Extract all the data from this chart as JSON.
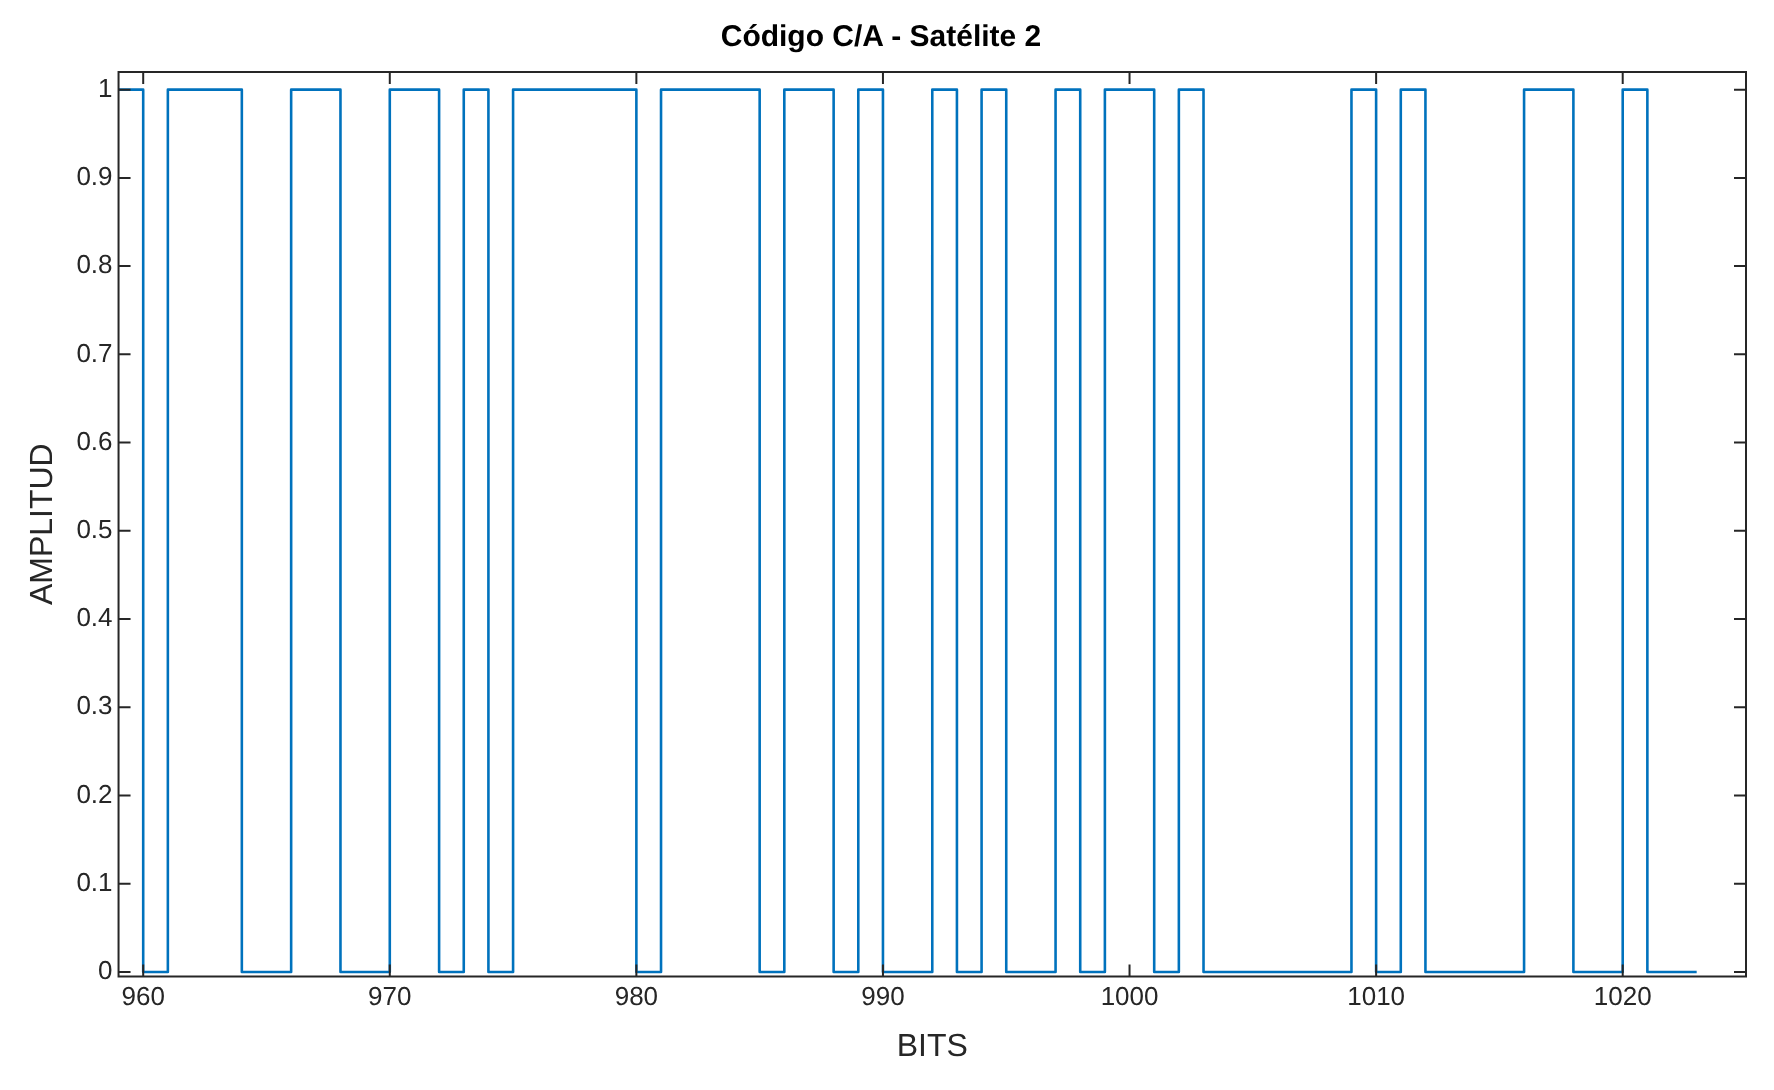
{
  "chart_data": {
    "type": "step",
    "title": "Código C/A - Satélite 2",
    "xlabel": "BITS",
    "ylabel": "AMPLITUD",
    "x": [
      959,
      960,
      961,
      962,
      963,
      964,
      965,
      966,
      967,
      968,
      969,
      970,
      971,
      972,
      973,
      974,
      975,
      976,
      977,
      978,
      979,
      980,
      981,
      982,
      983,
      984,
      985,
      986,
      987,
      988,
      989,
      990,
      991,
      992,
      993,
      994,
      995,
      996,
      997,
      998,
      999,
      1000,
      1001,
      1002,
      1003,
      1004,
      1005,
      1006,
      1007,
      1008,
      1009,
      1010,
      1011,
      1012,
      1013,
      1014,
      1015,
      1016,
      1017,
      1018,
      1019,
      1020,
      1021,
      1022,
      1023
    ],
    "series": [
      {
        "color": "#0072bd",
        "values": [
          1,
          0,
          1,
          1,
          1,
          0,
          0,
          1,
          1,
          0,
          0,
          1,
          1,
          0,
          1,
          0,
          1,
          1,
          1,
          1,
          1,
          0,
          1,
          1,
          1,
          1,
          0,
          1,
          1,
          0,
          1,
          0,
          0,
          1,
          0,
          1,
          0,
          0,
          1,
          0,
          1,
          1,
          0,
          1,
          0,
          0,
          0,
          0,
          0,
          0,
          1,
          0,
          1,
          0,
          0,
          0,
          0,
          1,
          1,
          0,
          0,
          1,
          0,
          0,
          0
        ]
      }
    ],
    "xlim": [
      959,
      1025
    ],
    "xticks": [
      960,
      970,
      980,
      990,
      1000,
      1010,
      1020
    ],
    "ylim": [
      -0.005,
      1.02
    ],
    "yticks": [
      0,
      0.1,
      0.2,
      0.3,
      0.4,
      0.5,
      0.6,
      0.7,
      0.8,
      0.9,
      1
    ],
    "grid": false,
    "legend": false
  }
}
